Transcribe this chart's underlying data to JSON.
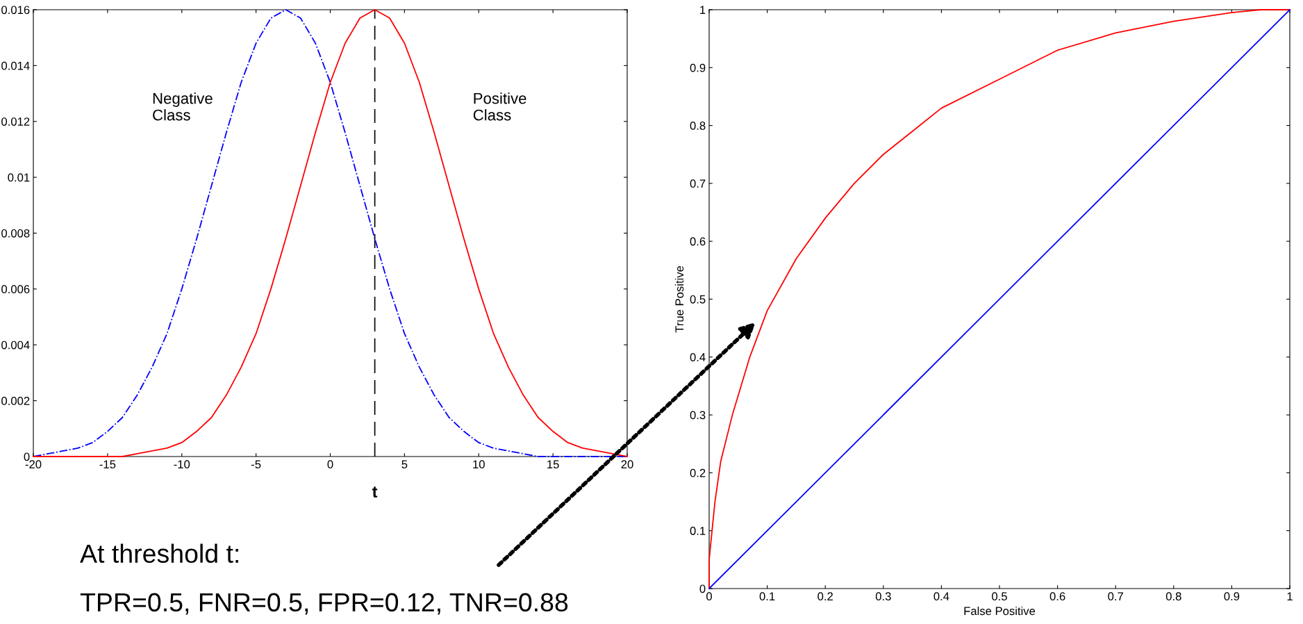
{
  "chart_data": [
    {
      "type": "line",
      "x": [
        -20,
        -19,
        -18,
        -17,
        -16,
        -15,
        -14,
        -13,
        -12,
        -11,
        -10,
        -9,
        -8,
        -7,
        -6,
        -5,
        -4,
        -3,
        -2,
        -1,
        0,
        1,
        2,
        3,
        4,
        5,
        6,
        7,
        8,
        9,
        10,
        11,
        12,
        13,
        14,
        15,
        16,
        17,
        18,
        19,
        20
      ],
      "series": [
        {
          "name": "Negative\nClass",
          "color": "#0000ff",
          "line_style": "dashed",
          "values": [
            0,
            0.0001,
            0.0002,
            0.0003,
            0.0005,
            0.0009,
            0.0014,
            0.0022,
            0.0032,
            0.0044,
            0.006,
            0.0078,
            0.0097,
            0.0116,
            0.0134,
            0.0148,
            0.0157,
            0.016,
            0.0157,
            0.0148,
            0.0134,
            0.0116,
            0.0097,
            0.0078,
            0.006,
            0.0044,
            0.0032,
            0.0022,
            0.0014,
            0.0009,
            0.0005,
            0.0003,
            0.0002,
            0.0001,
            0,
            0,
            0,
            0,
            0,
            0,
            0
          ]
        },
        {
          "name": "Positive\nClass",
          "color": "#ff0000",
          "line_style": "solid",
          "values": [
            0,
            0,
            0,
            0,
            0,
            0,
            0,
            0.0001,
            0.0002,
            0.0003,
            0.0005,
            0.0009,
            0.0014,
            0.0022,
            0.0032,
            0.0044,
            0.006,
            0.0078,
            0.0097,
            0.0116,
            0.0134,
            0.0148,
            0.0157,
            0.016,
            0.0157,
            0.0148,
            0.0134,
            0.0116,
            0.0097,
            0.0078,
            0.006,
            0.0044,
            0.0032,
            0.0022,
            0.0014,
            0.0009,
            0.0005,
            0.0003,
            0.0002,
            0.0001,
            0
          ]
        }
      ],
      "xlim": [
        -20,
        20
      ],
      "xticks": [
        -20,
        -15,
        -10,
        -5,
        0,
        5,
        10,
        15,
        20
      ],
      "ylim": [
        0,
        0.016
      ],
      "yticks": [
        0,
        0.002,
        0.004,
        0.006,
        0.008,
        0.01,
        0.012,
        0.014,
        0.016
      ],
      "ref_lines": [
        {
          "axis": "x",
          "value": 3,
          "label": "t",
          "color": "#000000",
          "line_style": "dashed"
        }
      ],
      "grid": false,
      "legend": false
    },
    {
      "type": "line",
      "xlabel": "False Positive",
      "ylabel": "True Positive",
      "series": [
        {
          "color": "#ff0000",
          "x": [
            0,
            0,
            0.005,
            0.01,
            0.02,
            0.04,
            0.07,
            0.1,
            0.15,
            0.2,
            0.25,
            0.3,
            0.35,
            0.4,
            0.5,
            0.6,
            0.7,
            0.8,
            0.9,
            0.95,
            1
          ],
          "values": [
            0,
            0.05,
            0.1,
            0.15,
            0.22,
            0.3,
            0.4,
            0.48,
            0.57,
            0.64,
            0.7,
            0.75,
            0.79,
            0.83,
            0.88,
            0.93,
            0.96,
            0.98,
            0.995,
            1,
            1
          ]
        },
        {
          "color": "#0000ff",
          "x": [
            0,
            1
          ],
          "values": [
            0,
            1
          ]
        }
      ],
      "xlim": [
        0,
        1
      ],
      "xticks": [
        0,
        0.1,
        0.2,
        0.3,
        0.4,
        0.5,
        0.6,
        0.7,
        0.8,
        0.9,
        1
      ],
      "ylim": [
        0,
        1
      ],
      "yticks": [
        0,
        0.1,
        0.2,
        0.3,
        0.4,
        0.5,
        0.6,
        0.7,
        0.8,
        0.9,
        1
      ],
      "annotations": [
        "At threshold t:",
        "TPR=0.5, FNR=0.5, FPR=0.12, TNR=0.88"
      ],
      "grid": false,
      "legend": false
    }
  ]
}
